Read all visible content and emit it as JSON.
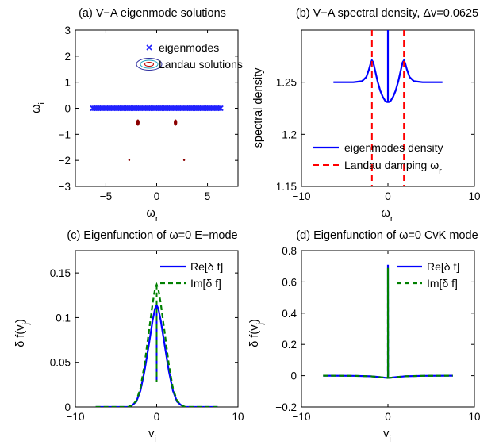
{
  "chart_data": [
    {
      "id": "a",
      "type": "scatter",
      "title": "(a) V−A eigenmode solutions",
      "xlabel": "ω",
      "xlabel_sub": "r",
      "ylabel": "ω",
      "ylabel_sub": "i",
      "xlim": [
        -8,
        8
      ],
      "ylim": [
        -3,
        3
      ],
      "xticks": [
        -5,
        0,
        5
      ],
      "xtick_labels": [
        "−5",
        "0",
        "5"
      ],
      "yticks": [
        -3,
        -2,
        -1,
        0,
        1,
        2,
        3
      ],
      "ytick_labels": [
        "−3",
        "−2",
        "−1",
        "0",
        "1",
        "2",
        "3"
      ],
      "grid": false,
      "legend_position": "top-right",
      "series": [
        {
          "name": "eigenmodes",
          "color": "#2222ff",
          "marker": "x",
          "x_range": [
            -6.3,
            6.3
          ],
          "y": 0
        },
        {
          "name": "Landau solutions",
          "color": "#8b0000",
          "marker": "contour",
          "points": [
            [
              -1.85,
              -0.55
            ],
            [
              1.85,
              -0.55
            ],
            [
              -2.7,
              -1.98
            ],
            [
              2.7,
              -1.98
            ]
          ]
        }
      ]
    },
    {
      "id": "b",
      "type": "line",
      "title": "(b) V−A spectral density, Δv=0.0625",
      "xlabel": "ω",
      "xlabel_sub": "r",
      "ylabel": "spectral density",
      "xlim": [
        -10,
        10
      ],
      "ylim": [
        1.15,
        1.3
      ],
      "xticks": [
        -10,
        0,
        10
      ],
      "xtick_labels": [
        "−10",
        "0",
        "10"
      ],
      "yticks": [
        1.15,
        1.2,
        1.25
      ],
      "ytick_labels": [
        "1.15",
        "1.2",
        "1.25"
      ],
      "grid": false,
      "legend_position": "bottom-right",
      "series": [
        {
          "name": "eigenmodes density",
          "color": "#0000ff",
          "style": "solid",
          "x": [
            -6.3,
            -4,
            -3,
            -2.5,
            -2.2,
            -2,
            -1.85,
            -1.7,
            -1.5,
            -1.2,
            -0.9,
            -0.6,
            -0.3,
            -0.1,
            0,
            0.1,
            0.3,
            0.6,
            0.9,
            1.2,
            1.5,
            1.7,
            1.85,
            2,
            2.2,
            2.5,
            3,
            4,
            6.3
          ],
          "y": [
            1.25,
            1.25,
            1.251,
            1.255,
            1.262,
            1.268,
            1.271,
            1.269,
            1.262,
            1.251,
            1.242,
            1.236,
            1.232,
            1.231,
            1.231,
            1.231,
            1.232,
            1.236,
            1.242,
            1.251,
            1.262,
            1.269,
            1.271,
            1.268,
            1.262,
            1.255,
            1.251,
            1.25,
            1.25
          ]
        },
        {
          "name": "Landau damping ω",
          "name_sub": "r",
          "color": "#ff0000",
          "style": "dashed",
          "vlines": [
            -1.85,
            1.85
          ]
        }
      ],
      "spike_x": 0
    },
    {
      "id": "c",
      "type": "line",
      "title": "(c) Eigenfunction of ω=0 E−mode",
      "xlabel": "v",
      "xlabel_sub": "i",
      "ylabel": "δ f(v",
      "ylabel_sub": "j",
      "ylabel_tail": ")",
      "xlim": [
        -10,
        10
      ],
      "ylim": [
        0,
        0.175
      ],
      "xticks": [
        -10,
        0,
        10
      ],
      "xtick_labels": [
        "−10",
        "0",
        "10"
      ],
      "yticks": [
        0,
        0.05,
        0.1,
        0.15
      ],
      "ytick_labels": [
        "0",
        "0.05",
        "0.1",
        "0.15"
      ],
      "grid": false,
      "legend_position": "top-right",
      "series": [
        {
          "name": "Re[δ f]",
          "color": "#0000ff",
          "style": "solid",
          "width": 2.2,
          "x": [
            -7.5,
            -3.5,
            -3,
            -2.5,
            -2,
            -1.5,
            -1,
            -0.5,
            -0.2,
            0,
            0.2,
            0.5,
            1,
            1.5,
            2,
            2.5,
            3,
            3.5,
            7.5
          ],
          "y": [
            0,
            0,
            0.002,
            0.006,
            0.018,
            0.04,
            0.068,
            0.097,
            0.11,
            0.114,
            0.11,
            0.097,
            0.068,
            0.04,
            0.018,
            0.006,
            0.002,
            0,
            0
          ],
          "notch": [
            0,
            0.114,
            0.028
          ]
        },
        {
          "name": "Im[δ f]",
          "color": "#008000",
          "style": "dashed",
          "width": 2.2,
          "x": [
            -7.5,
            -3.5,
            -3,
            -2.5,
            -2,
            -1.5,
            -1,
            -0.5,
            -0.2,
            0,
            0.2,
            0.5,
            1,
            1.5,
            2,
            2.5,
            3,
            3.5,
            7.5
          ],
          "y": [
            0,
            0,
            0.002,
            0.007,
            0.021,
            0.047,
            0.082,
            0.116,
            0.132,
            0.137,
            0.132,
            0.116,
            0.082,
            0.047,
            0.021,
            0.007,
            0.002,
            0,
            0
          ],
          "notch": [
            0,
            0.137,
            0.028
          ]
        }
      ]
    },
    {
      "id": "d",
      "type": "line",
      "title": "(d) Eigenfunction of ω=0 CvK mode",
      "xlabel": "v",
      "xlabel_sub": "i",
      "ylabel": "δ f(v",
      "ylabel_sub": "j",
      "ylabel_tail": ")",
      "xlim": [
        -10,
        10
      ],
      "ylim": [
        -0.2,
        0.8
      ],
      "xticks": [
        -10,
        0,
        10
      ],
      "xtick_labels": [
        "−10",
        "0",
        "10"
      ],
      "yticks": [
        -0.2,
        0,
        0.2,
        0.4,
        0.6,
        0.8
      ],
      "ytick_labels": [
        "−0.2",
        "0",
        "0.2",
        "0.4",
        "0.6",
        "0.8"
      ],
      "grid": false,
      "legend_position": "top-right",
      "series": [
        {
          "name": "Re[δ f]",
          "color": "#0000ff",
          "style": "solid",
          "width": 2.2,
          "x": [
            -7.5,
            -4,
            -2,
            -1,
            -0.3,
            -0.02,
            0,
            0,
            0.02,
            0.3,
            1,
            2,
            4,
            7.5
          ],
          "y": [
            0,
            -0.001,
            -0.004,
            -0.009,
            -0.013,
            -0.014,
            -0.014,
            0.71,
            -0.014,
            -0.013,
            -0.009,
            -0.004,
            -0.001,
            0
          ]
        },
        {
          "name": "Im[δ f]",
          "color": "#008000",
          "style": "dashed",
          "width": 2.2,
          "x": [
            -7.5,
            -4,
            -2,
            -1,
            -0.3,
            -0.02,
            0,
            0,
            0.02,
            0.3,
            1,
            2,
            4,
            7.5
          ],
          "y": [
            0,
            -0.001,
            -0.004,
            -0.009,
            -0.013,
            -0.014,
            -0.014,
            0.69,
            -0.014,
            -0.013,
            -0.009,
            -0.004,
            -0.001,
            0
          ]
        }
      ]
    }
  ]
}
